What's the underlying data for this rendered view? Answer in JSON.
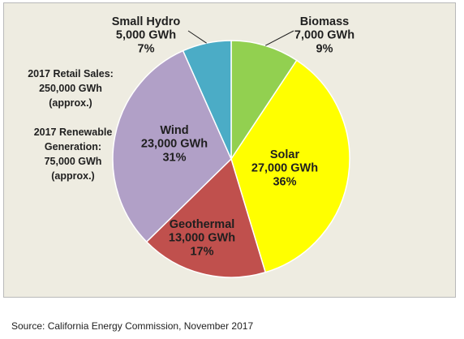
{
  "chart_data": {
    "type": "pie",
    "title": "",
    "slices": [
      {
        "name": "Biomass",
        "value_label": "7,000 GWh",
        "value": 7000,
        "percent_label": "9%",
        "percent": 9,
        "color": "#92d050"
      },
      {
        "name": "Solar",
        "value_label": "27,000 GWh",
        "value": 27000,
        "percent_label": "36%",
        "percent": 36,
        "color": "#ffff00"
      },
      {
        "name": "Geothermal",
        "value_label": "13,000 GWh",
        "value": 13000,
        "percent_label": "17%",
        "percent": 17,
        "color": "#c0504d"
      },
      {
        "name": "Wind",
        "value_label": "23,000 GWh",
        "value": 23000,
        "percent_label": "31%",
        "percent": 31,
        "color": "#b1a0c7"
      },
      {
        "name": "Small Hydro",
        "value_label": "5,000 GWh",
        "value": 5000,
        "percent_label": "7%",
        "percent": 7,
        "color": "#4bacc6"
      }
    ],
    "background_color": "#eeece1",
    "edge_color": "#ffffff"
  },
  "notes": {
    "retail_sales": [
      "2017 Retail Sales:",
      "250,000 GWh",
      "(approx.)"
    ],
    "renewable_generation": [
      "2017 Renewable",
      "Generation:",
      "75,000 GWh",
      "(approx.)"
    ]
  },
  "source": "Source: California Energy Commission, November 2017"
}
